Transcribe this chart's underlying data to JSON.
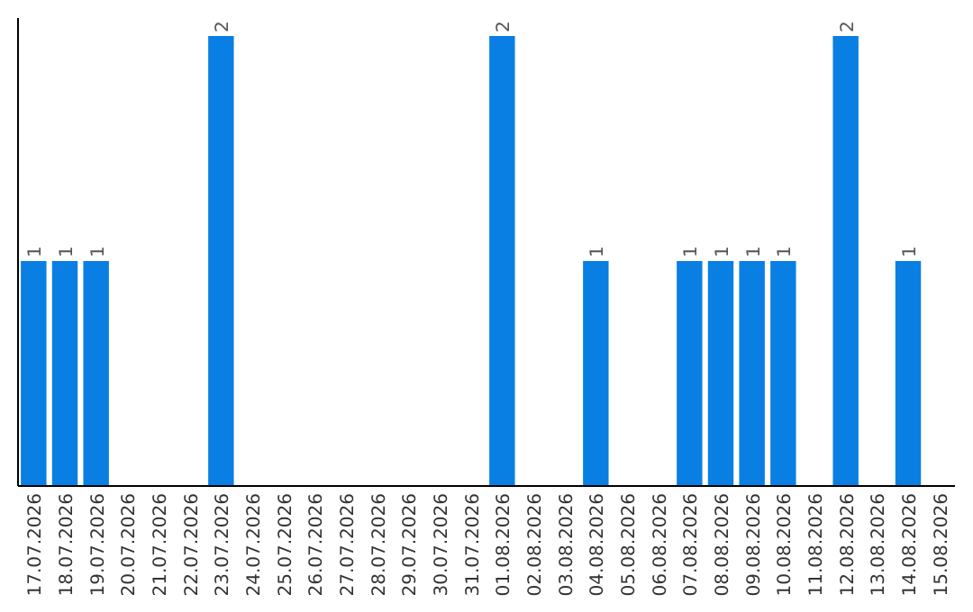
{
  "chart_data": {
    "type": "bar",
    "categories": [
      "17.07.2026",
      "18.07.2026",
      "19.07.2026",
      "20.07.2026",
      "21.07.2026",
      "22.07.2026",
      "23.07.2026",
      "24.07.2026",
      "25.07.2026",
      "26.07.2026",
      "27.07.2026",
      "28.07.2026",
      "29.07.2026",
      "30.07.2026",
      "31.07.2026",
      "01.08.2026",
      "02.08.2026",
      "03.08.2026",
      "04.08.2026",
      "05.08.2026",
      "06.08.2026",
      "07.08.2026",
      "08.08.2026",
      "09.08.2026",
      "10.08.2026",
      "11.08.2026",
      "12.08.2026",
      "13.08.2026",
      "14.08.2026",
      "15.08.2026"
    ],
    "values": [
      1,
      1,
      1,
      0,
      0,
      0,
      2,
      0,
      0,
      0,
      0,
      0,
      0,
      0,
      0,
      2,
      0,
      0,
      1,
      0,
      0,
      1,
      1,
      1,
      1,
      0,
      2,
      0,
      1,
      0
    ],
    "value_labels": [
      "1",
      "1",
      "1",
      null,
      null,
      null,
      "2",
      null,
      null,
      null,
      null,
      null,
      null,
      null,
      null,
      "2",
      null,
      null,
      "1",
      null,
      null,
      "1",
      "1",
      "1",
      "1",
      null,
      "2",
      null,
      "1",
      null
    ],
    "color": "#0a7fe3",
    "ylim": [
      0,
      2.08
    ],
    "tick_labels": "x"
  }
}
